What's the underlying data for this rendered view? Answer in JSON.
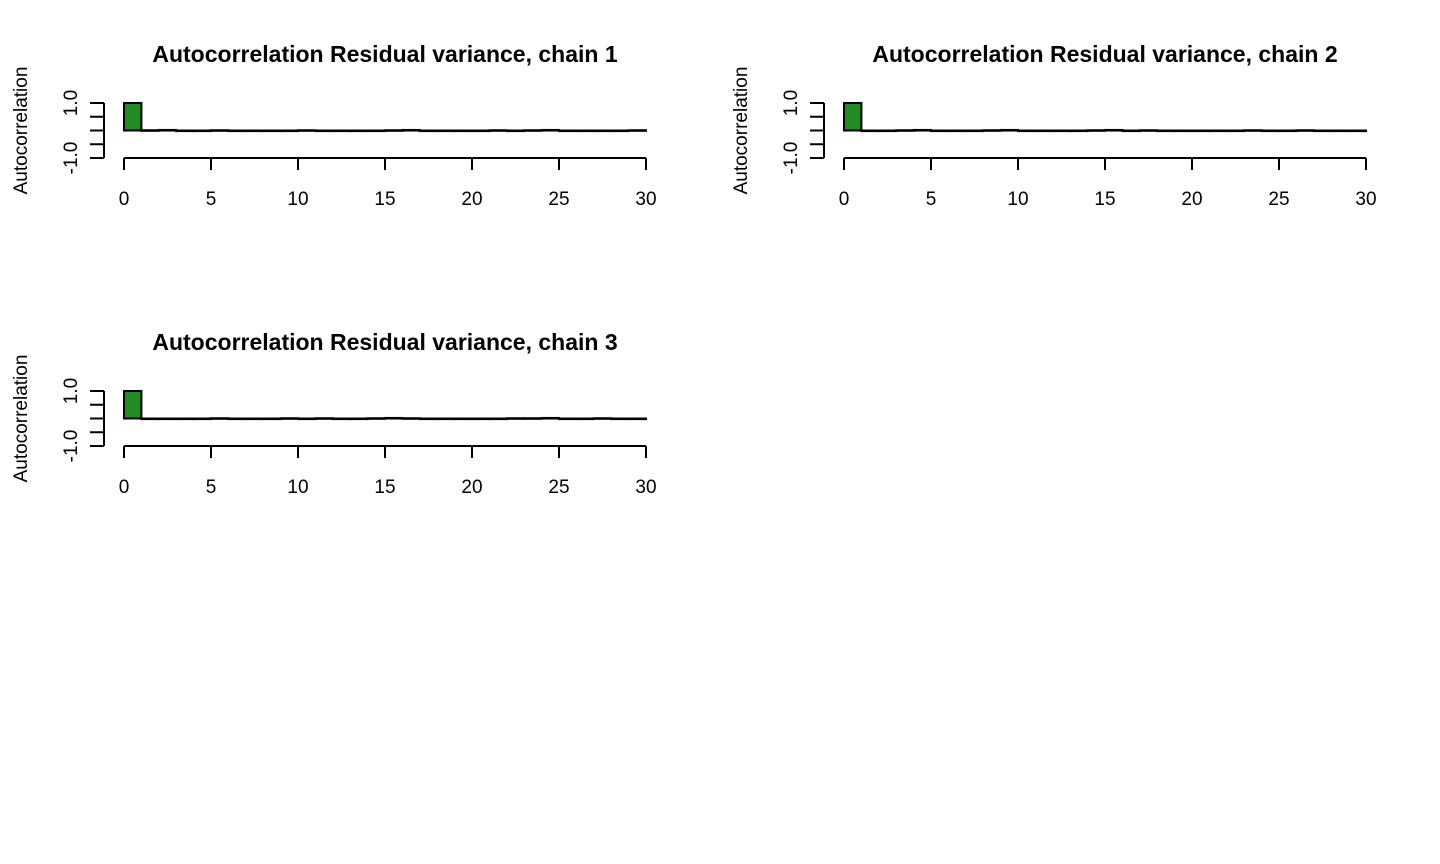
{
  "chart_data": [
    {
      "type": "bar",
      "title": "Autocorrelation Residual variance, chain 1",
      "ylabel": "Autocorrelation",
      "xlim": [
        0,
        30
      ],
      "ylim": [
        -1,
        1
      ],
      "xticks": [
        0,
        5,
        10,
        15,
        20,
        25,
        30
      ],
      "yticks": [
        -1.0,
        1.0
      ],
      "yticklabels": [
        "-1.0",
        "1.0"
      ],
      "lags": [
        0,
        1,
        2,
        3,
        4,
        5,
        6,
        7,
        8,
        9,
        10,
        11,
        12,
        13,
        14,
        15,
        16,
        17,
        18,
        19,
        20,
        21,
        22,
        23,
        24,
        25,
        26,
        27,
        28,
        29,
        30
      ],
      "values": [
        1.0,
        0.01,
        0.02,
        0.0,
        -0.01,
        0.01,
        0.0,
        -0.01,
        0.0,
        -0.02,
        0.01,
        0.0,
        0.0,
        -0.01,
        0.0,
        0.01,
        0.02,
        -0.01,
        -0.01,
        0.0,
        0.0,
        0.01,
        0.0,
        0.01,
        0.02,
        0.0,
        -0.01,
        0.0,
        0.0,
        0.01,
        0.0
      ],
      "grid": false,
      "color": "#228b22"
    },
    {
      "type": "bar",
      "title": "Autocorrelation Residual variance, chain 2",
      "ylabel": "Autocorrelation",
      "xlim": [
        0,
        30
      ],
      "ylim": [
        -1,
        1
      ],
      "xticks": [
        0,
        5,
        10,
        15,
        20,
        25,
        30
      ],
      "yticks": [
        -1.0,
        1.0
      ],
      "yticklabels": [
        "-1.0",
        "1.0"
      ],
      "lags": [
        0,
        1,
        2,
        3,
        4,
        5,
        6,
        7,
        8,
        9,
        10,
        11,
        12,
        13,
        14,
        15,
        16,
        17,
        18,
        19,
        20,
        21,
        22,
        23,
        24,
        25,
        26,
        27,
        28,
        29,
        30
      ],
      "values": [
        1.0,
        -0.01,
        0.0,
        0.01,
        0.02,
        0.0,
        -0.01,
        0.0,
        0.01,
        0.02,
        0.0,
        0.0,
        -0.01,
        0.0,
        0.01,
        0.02,
        0.0,
        0.01,
        0.0,
        -0.01,
        -0.02,
        0.0,
        0.0,
        0.01,
        0.0,
        0.0,
        0.01,
        0.0,
        0.0,
        0.0,
        0.0
      ],
      "grid": false,
      "color": "#228b22"
    },
    {
      "type": "bar",
      "title": "Autocorrelation Residual variance, chain 3",
      "ylabel": "Autocorrelation",
      "xlim": [
        0,
        30
      ],
      "ylim": [
        -1,
        1
      ],
      "xticks": [
        0,
        5,
        10,
        15,
        20,
        25,
        30
      ],
      "yticks": [
        -1.0,
        1.0
      ],
      "yticklabels": [
        "-1.0",
        "1.0"
      ],
      "lags": [
        0,
        1,
        2,
        3,
        4,
        5,
        6,
        7,
        8,
        9,
        10,
        11,
        12,
        13,
        14,
        15,
        16,
        17,
        18,
        19,
        20,
        21,
        22,
        23,
        24,
        25,
        26,
        27,
        28,
        29,
        30
      ],
      "values": [
        1.0,
        -0.02,
        0.0,
        0.0,
        -0.01,
        0.01,
        -0.01,
        0.0,
        0.0,
        0.01,
        0.0,
        0.01,
        0.0,
        0.0,
        0.01,
        0.02,
        0.01,
        0.0,
        -0.01,
        -0.02,
        0.0,
        0.0,
        0.01,
        0.01,
        0.02,
        0.0,
        0.0,
        0.01,
        0.0,
        0.0,
        0.0
      ],
      "grid": false,
      "color": "#228b22"
    }
  ]
}
